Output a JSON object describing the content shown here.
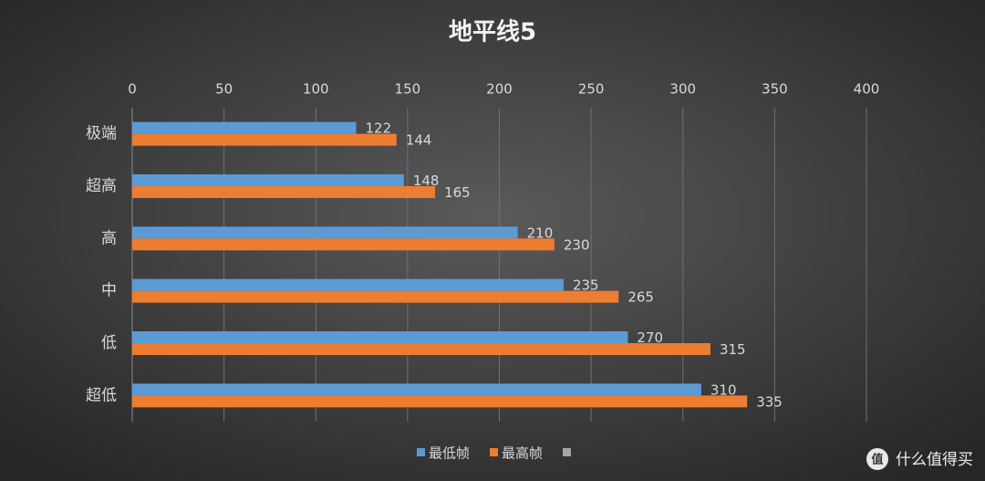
{
  "chart_data": {
    "type": "bar",
    "orientation": "horizontal",
    "title": "地平线5",
    "categories": [
      "极端",
      "超高",
      "高",
      "中",
      "低",
      "超低"
    ],
    "series": [
      {
        "name": "最低帧",
        "color": "#5b9bd5",
        "values": [
          122,
          148,
          210,
          235,
          270,
          310
        ]
      },
      {
        "name": "最高帧",
        "color": "#ed7d31",
        "values": [
          144,
          165,
          230,
          265,
          315,
          335
        ]
      }
    ],
    "xlim": [
      0,
      400
    ],
    "xticks": [
      0,
      50,
      100,
      150,
      200,
      250,
      300,
      350,
      400
    ],
    "grid": true,
    "legend": "bottom"
  },
  "watermark": {
    "icon": "值",
    "text": "什么值得买"
  }
}
